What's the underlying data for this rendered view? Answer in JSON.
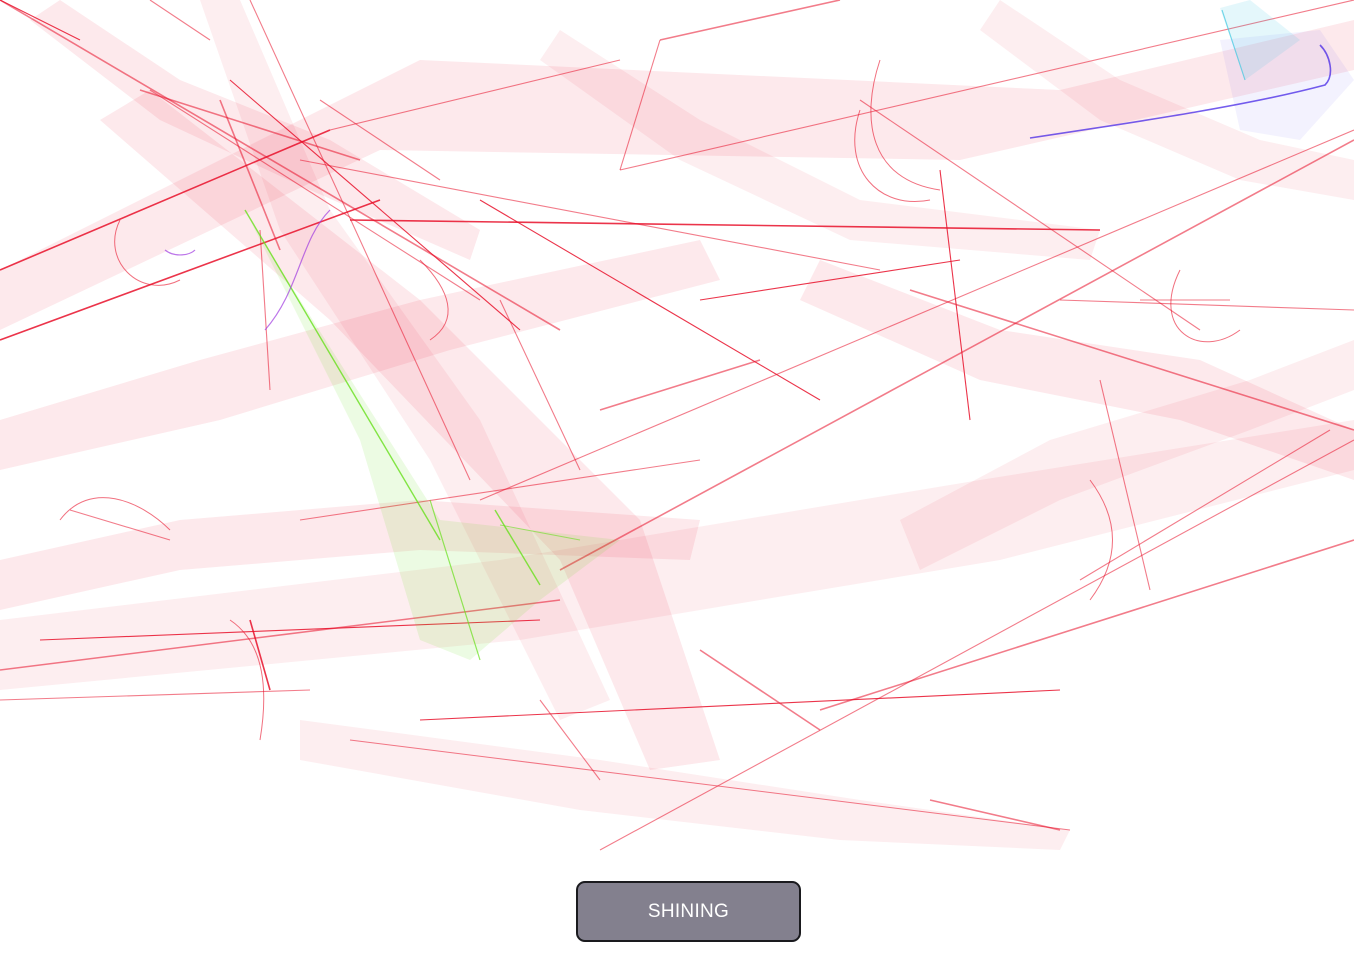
{
  "canvas": {
    "background": "#ffffff",
    "primary_color": "#e8102a",
    "accent_colors": {
      "green": "#66e01a",
      "blue": "#3a1ae6",
      "cyan": "#3ec8e0",
      "violet": "#a03ae0"
    }
  },
  "button": {
    "label": "SHINING",
    "background": "#83808e",
    "text_color": "#ffffff"
  }
}
